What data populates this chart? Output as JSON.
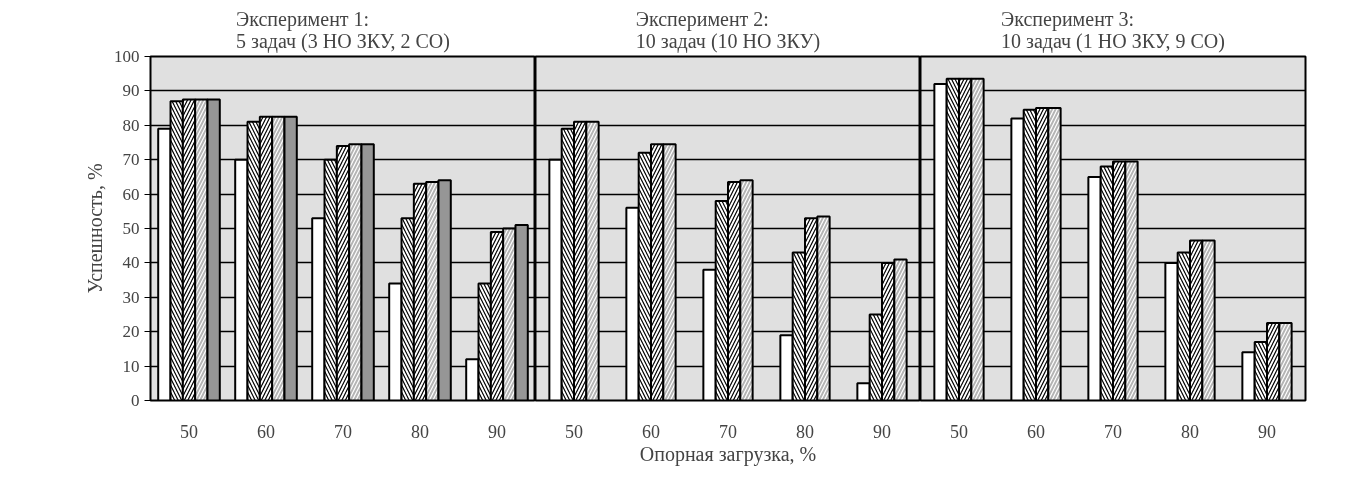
{
  "chart_data": [
    {
      "type": "bar",
      "title": "Эксперимент 1:\n5 задач (3 НО ЗКУ, 2 СО)",
      "ylabel": "Успешность, %",
      "categories": [
        "50",
        "60",
        "70",
        "80",
        "90"
      ],
      "series": [
        {
          "color": "#ffffff",
          "values": [
            79,
            70,
            53,
            34,
            12
          ]
        },
        {
          "color": "#ffffff",
          "values": [
            87,
            81,
            70,
            53,
            34
          ]
        },
        {
          "color": "#ffffff",
          "values": [
            87.5,
            82.5,
            74,
            63,
            49
          ]
        },
        {
          "color": "#b4b4b4",
          "values": [
            87.5,
            82.5,
            74.5,
            63.5,
            50
          ]
        },
        {
          "color": "#969696",
          "values": [
            87.5,
            82.5,
            74.5,
            64,
            51
          ]
        }
      ],
      "ylim": [
        0,
        100
      ],
      "yticks": [
        0,
        10,
        20,
        30,
        40,
        50,
        60,
        70,
        80,
        90,
        100
      ],
      "grid": "y"
    },
    {
      "type": "bar",
      "title": "Эксперимент 2:\n10 задач (10 НО ЗКУ)",
      "xlabel": "Опорная загрузка, %",
      "categories": [
        "50",
        "60",
        "70",
        "80",
        "90"
      ],
      "series": [
        {
          "color": "#ffffff",
          "values": [
            70,
            56,
            38,
            19,
            5
          ]
        },
        {
          "color": "#ffffff",
          "values": [
            79,
            72,
            58,
            43,
            25
          ]
        },
        {
          "color": "#ffffff",
          "values": [
            81,
            74.5,
            63.5,
            53,
            40
          ]
        },
        {
          "color": "#b4b4b4",
          "values": [
            81,
            74.5,
            64,
            53.5,
            41
          ]
        }
      ],
      "ylim": [
        0,
        100
      ],
      "yticks": [
        0,
        10,
        20,
        30,
        40,
        50,
        60,
        70,
        80,
        90,
        100
      ],
      "grid": "y",
      "tick_labels": "x"
    },
    {
      "type": "bar",
      "title": "Эксперимент 3:\n10 задач (1 НО ЗКУ, 9 СО)",
      "categories": [
        "50",
        "60",
        "70",
        "80",
        "90"
      ],
      "series": [
        {
          "color": "#ffffff",
          "values": [
            92,
            82,
            65,
            40,
            14
          ]
        },
        {
          "color": "#ffffff",
          "values": [
            93.5,
            84.5,
            68,
            43,
            17
          ]
        },
        {
          "color": "#ffffff",
          "values": [
            93.5,
            85,
            69.5,
            46.5,
            22.5
          ]
        },
        {
          "color": "#b4b4b4",
          "values": [
            93.5,
            85,
            69.5,
            46.5,
            22.5
          ]
        }
      ],
      "ylim": [
        0,
        100
      ],
      "yticks": [
        0,
        10,
        20,
        30,
        40,
        50,
        60,
        70,
        80,
        90,
        100
      ],
      "grid": "y",
      "tick_labels": "x"
    }
  ]
}
